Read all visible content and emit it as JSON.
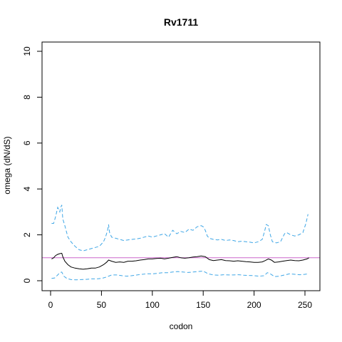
{
  "chart_data": {
    "type": "line",
    "title": "Rv1711",
    "xlabel": "codon",
    "ylabel": "omega (dN/dS)",
    "xlim": [
      0,
      260
    ],
    "ylim": [
      0,
      10.5
    ],
    "x_ticks": [
      0,
      50,
      100,
      150,
      200,
      250
    ],
    "y_ticks": [
      0,
      2,
      4,
      6,
      8,
      10
    ],
    "grid": false,
    "reference_line": {
      "y": 1,
      "color": "#cc66cc"
    },
    "series": [
      {
        "role": "upper_bound",
        "color": "#3ea6e6",
        "dash": "dashed",
        "x": [
          1,
          3,
          5,
          7,
          9,
          10,
          11,
          12,
          14,
          17,
          20,
          24,
          28,
          32,
          36,
          40,
          44,
          48,
          52,
          54,
          56,
          57,
          58,
          60,
          64,
          68,
          72,
          76,
          80,
          84,
          88,
          92,
          96,
          100,
          104,
          108,
          112,
          116,
          120,
          124,
          128,
          132,
          136,
          140,
          144,
          148,
          150,
          152,
          154,
          156,
          160,
          164,
          168,
          172,
          176,
          180,
          184,
          188,
          192,
          196,
          200,
          204,
          208,
          210,
          212,
          214,
          216,
          218,
          222,
          226,
          230,
          232,
          236,
          240,
          244,
          248,
          251,
          253
        ],
        "y": [
          2.5,
          2.5,
          2.8,
          3.2,
          3.0,
          3.2,
          3.3,
          2.7,
          2.4,
          1.9,
          1.7,
          1.5,
          1.35,
          1.3,
          1.35,
          1.4,
          1.45,
          1.5,
          1.7,
          1.9,
          2.2,
          2.45,
          2.1,
          1.9,
          1.85,
          1.8,
          1.75,
          1.78,
          1.8,
          1.82,
          1.85,
          1.9,
          1.95,
          1.9,
          1.95,
          2.0,
          2.05,
          1.9,
          2.2,
          2.05,
          2.15,
          2.1,
          2.25,
          2.2,
          2.35,
          2.4,
          2.35,
          2.2,
          1.95,
          1.85,
          1.8,
          1.78,
          1.8,
          1.75,
          1.78,
          1.75,
          1.7,
          1.72,
          1.7,
          1.68,
          1.65,
          1.7,
          1.8,
          2.1,
          2.45,
          2.4,
          2.0,
          1.7,
          1.65,
          1.7,
          2.05,
          2.1,
          2.0,
          1.95,
          2.0,
          2.1,
          2.5,
          2.9
        ]
      },
      {
        "role": "estimate",
        "color": "#000000",
        "dash": "solid",
        "x": [
          1,
          3,
          5,
          7,
          9,
          11,
          12,
          14,
          17,
          20,
          24,
          28,
          32,
          36,
          40,
          44,
          48,
          52,
          55,
          57,
          60,
          64,
          68,
          72,
          76,
          80,
          84,
          88,
          92,
          96,
          100,
          104,
          108,
          112,
          116,
          120,
          124,
          128,
          132,
          136,
          140,
          144,
          148,
          152,
          156,
          160,
          164,
          168,
          172,
          176,
          180,
          184,
          188,
          192,
          196,
          200,
          204,
          208,
          211,
          214,
          217,
          220,
          224,
          228,
          232,
          236,
          240,
          244,
          248,
          252,
          254
        ],
        "y": [
          0.95,
          1.0,
          1.1,
          1.15,
          1.18,
          1.2,
          1.05,
          0.85,
          0.7,
          0.6,
          0.55,
          0.52,
          0.5,
          0.52,
          0.55,
          0.55,
          0.6,
          0.7,
          0.8,
          0.9,
          0.85,
          0.8,
          0.82,
          0.8,
          0.85,
          0.85,
          0.87,
          0.9,
          0.92,
          0.95,
          0.95,
          0.97,
          0.98,
          0.95,
          0.98,
          1.02,
          1.05,
          1.0,
          0.98,
          1.0,
          1.03,
          1.05,
          1.08,
          1.05,
          0.92,
          0.88,
          0.9,
          0.92,
          0.88,
          0.87,
          0.85,
          0.87,
          0.85,
          0.83,
          0.82,
          0.8,
          0.8,
          0.82,
          0.88,
          0.95,
          0.9,
          0.8,
          0.82,
          0.85,
          0.88,
          0.9,
          0.88,
          0.87,
          0.9,
          0.95,
          1.0
        ]
      },
      {
        "role": "lower_bound",
        "color": "#3ea6e6",
        "dash": "dashed",
        "x": [
          1,
          4,
          7,
          9,
          11,
          13,
          16,
          20,
          25,
          30,
          35,
          40,
          45,
          50,
          54,
          57,
          60,
          65,
          70,
          75,
          80,
          85,
          90,
          95,
          100,
          105,
          110,
          115,
          120,
          125,
          130,
          135,
          140,
          145,
          150,
          155,
          160,
          165,
          170,
          175,
          180,
          185,
          190,
          195,
          200,
          205,
          210,
          213,
          216,
          220,
          225,
          230,
          235,
          240,
          245,
          250,
          253
        ],
        "y": [
          0.1,
          0.12,
          0.25,
          0.35,
          0.38,
          0.2,
          0.1,
          0.05,
          0.04,
          0.05,
          0.06,
          0.08,
          0.08,
          0.1,
          0.15,
          0.2,
          0.25,
          0.25,
          0.22,
          0.2,
          0.22,
          0.25,
          0.28,
          0.3,
          0.3,
          0.32,
          0.35,
          0.35,
          0.38,
          0.4,
          0.38,
          0.36,
          0.38,
          0.4,
          0.42,
          0.3,
          0.25,
          0.24,
          0.26,
          0.25,
          0.25,
          0.26,
          0.24,
          0.23,
          0.22,
          0.2,
          0.22,
          0.35,
          0.3,
          0.18,
          0.2,
          0.25,
          0.3,
          0.28,
          0.26,
          0.28,
          0.3
        ]
      }
    ]
  }
}
